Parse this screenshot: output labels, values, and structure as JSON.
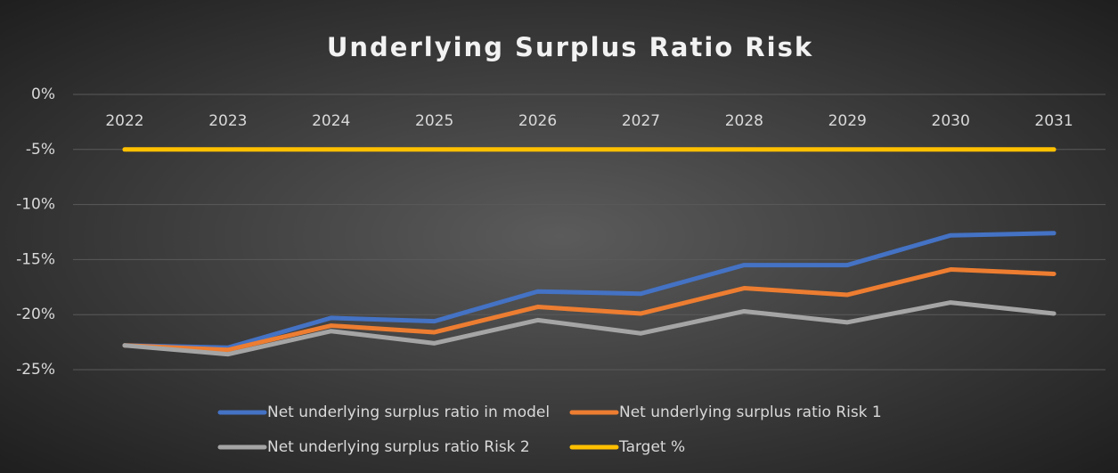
{
  "chart_data": {
    "type": "line",
    "title": "Underlying Surplus Ratio Risk",
    "categories": [
      "2022",
      "2023",
      "2024",
      "2025",
      "2026",
      "2027",
      "2028",
      "2029",
      "2030",
      "2031"
    ],
    "series": [
      {
        "name": "Net underlying surplus ratio in model",
        "color": "#4472c4",
        "values": [
          -22.8,
          -23.0,
          -20.3,
          -20.6,
          -17.9,
          -18.1,
          -15.5,
          -15.5,
          -12.8,
          -12.6
        ]
      },
      {
        "name": "Net underlying surplus ratio Risk 1",
        "color": "#ed7d31",
        "values": [
          -22.8,
          -23.2,
          -21.0,
          -21.6,
          -19.3,
          -19.9,
          -17.6,
          -18.2,
          -15.9,
          -16.3
        ]
      },
      {
        "name": "Net underlying surplus ratio Risk 2",
        "color": "#a5a5a5",
        "values": [
          -22.8,
          -23.6,
          -21.5,
          -22.6,
          -20.5,
          -21.7,
          -19.7,
          -20.7,
          -18.9,
          -19.9
        ]
      },
      {
        "name": "Target %",
        "color": "#ffc000",
        "values": [
          -5,
          -5,
          -5,
          -5,
          -5,
          -5,
          -5,
          -5,
          -5,
          -5
        ]
      }
    ],
    "ylim": [
      -25,
      0
    ],
    "yticks": [
      {
        "value": 0,
        "label": "0%"
      },
      {
        "value": -5,
        "label": "-5%"
      },
      {
        "value": -10,
        "label": "-10%"
      },
      {
        "value": -15,
        "label": "-15%"
      },
      {
        "value": -20,
        "label": "-20%"
      },
      {
        "value": -25,
        "label": "-25%"
      }
    ],
    "grid": true,
    "legend": "bottom"
  }
}
